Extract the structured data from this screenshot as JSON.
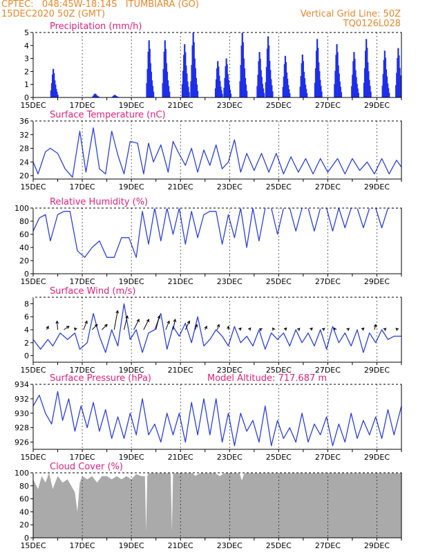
{
  "header": {
    "line1": "CPTEC:   048:45W-18:14S   ITUMBIARA (GO)",
    "line2": "15DEC2020 50Z (GMT)",
    "right1": "Vertical Grid Line: 50Z",
    "right2": "TQ0126L028"
  },
  "colors": {
    "line": "#2a3fe0",
    "precip": "#1f2fe8",
    "cloud": "#aaaaaa",
    "title": "#e0207a",
    "header": "#e8872a",
    "axis": "#000000"
  },
  "chart_data": [
    {
      "type": "bar",
      "title": "Precipitation (mm/h)",
      "ylim": [
        0,
        5
      ],
      "yticks": [
        "0",
        "1",
        "2",
        "3",
        "4",
        "5"
      ],
      "xticks": [
        "15DEC",
        "17DEC",
        "19DEC",
        "21DEC",
        "23DEC",
        "25DEC",
        "27DEC",
        "29DEC"
      ],
      "x_unit": "day of December 2020",
      "x_range": [
        15,
        30
      ],
      "bursts": [
        {
          "day": 15.85,
          "peak": 2.2
        },
        {
          "day": 17.55,
          "peak": 0.3
        },
        {
          "day": 18.35,
          "peak": 0.2
        },
        {
          "day": 19.75,
          "peak": 4.4
        },
        {
          "day": 20.4,
          "peak": 4.4
        },
        {
          "day": 21.2,
          "peak": 4.1
        },
        {
          "day": 21.55,
          "peak": 5.0
        },
        {
          "day": 22.55,
          "peak": 2.8
        },
        {
          "day": 22.9,
          "peak": 3.0
        },
        {
          "day": 23.55,
          "peak": 5.0
        },
        {
          "day": 24.25,
          "peak": 3.5
        },
        {
          "day": 24.6,
          "peak": 4.7
        },
        {
          "day": 25.3,
          "peak": 3.2
        },
        {
          "day": 26.0,
          "peak": 3.3
        },
        {
          "day": 26.6,
          "peak": 4.5
        },
        {
          "day": 27.4,
          "peak": 4.1
        },
        {
          "day": 28.1,
          "peak": 3.5
        },
        {
          "day": 28.6,
          "peak": 4.5
        },
        {
          "day": 29.35,
          "peak": 3.6
        },
        {
          "day": 29.9,
          "peak": 3.8
        }
      ]
    },
    {
      "type": "line",
      "title": "Surface Temperature (nC)",
      "ylim": [
        19,
        36
      ],
      "yticks": [
        "20",
        "24",
        "28",
        "32",
        "36"
      ],
      "xticks": [
        "15DEC",
        "17DEC",
        "19DEC",
        "21DEC",
        "23DEC",
        "25DEC",
        "27DEC",
        "29DEC"
      ],
      "x_range": [
        15,
        30
      ],
      "x": [
        15.0,
        15.2,
        15.5,
        15.7,
        16.0,
        16.3,
        16.6,
        16.9,
        17.15,
        17.45,
        17.7,
        17.95,
        18.2,
        18.45,
        18.7,
        18.95,
        19.25,
        19.5,
        19.7,
        19.9,
        20.2,
        20.5,
        20.7,
        20.9,
        21.2,
        21.45,
        21.7,
        21.95,
        22.2,
        22.45,
        22.7,
        22.95,
        23.2,
        23.45,
        23.7,
        24.0,
        24.3,
        24.6,
        24.9,
        25.2,
        25.5,
        25.8,
        26.1,
        26.4,
        26.7,
        27.0,
        27.4,
        27.7,
        28.0,
        28.3,
        28.6,
        28.9,
        29.2,
        29.5,
        29.8,
        30.0
      ],
      "y": [
        24.0,
        20.5,
        27.0,
        28.0,
        26.5,
        22.0,
        19.5,
        33.0,
        21.0,
        34.0,
        22.0,
        20.5,
        33.0,
        26.0,
        20.5,
        30.0,
        29.5,
        20.5,
        29.5,
        24.0,
        29.0,
        21.0,
        30.0,
        27.0,
        23.0,
        28.0,
        21.0,
        27.5,
        23.0,
        29.0,
        22.0,
        24.0,
        30.5,
        21.0,
        26.5,
        21.5,
        26.5,
        21.0,
        26.5,
        20.5,
        25.5,
        21.0,
        25.0,
        20.5,
        25.0,
        21.0,
        25.0,
        20.5,
        25.0,
        21.5,
        24.0,
        20.5,
        25.0,
        20.5,
        24.5,
        22.5
      ]
    },
    {
      "type": "line",
      "title": "Relative Humidity (%)",
      "ylim": [
        0,
        100
      ],
      "yticks": [
        "0",
        "20",
        "40",
        "60",
        "80",
        "100"
      ],
      "xticks": [
        "15DEC",
        "17DEC",
        "19DEC",
        "21DEC",
        "23DEC",
        "25DEC",
        "27DEC",
        "29DEC"
      ],
      "x_range": [
        15,
        30
      ],
      "x": [
        15.0,
        15.25,
        15.5,
        15.7,
        16.0,
        16.25,
        16.5,
        16.8,
        17.1,
        17.4,
        17.7,
        18.0,
        18.3,
        18.6,
        18.9,
        19.2,
        19.45,
        19.7,
        19.95,
        20.2,
        20.45,
        20.7,
        20.95,
        21.2,
        21.45,
        21.7,
        21.95,
        22.2,
        22.45,
        22.7,
        22.95,
        23.2,
        23.45,
        23.7,
        23.95,
        24.2,
        24.45,
        24.7,
        24.95,
        25.2,
        25.45,
        25.7,
        25.95,
        26.2,
        26.45,
        26.7,
        26.95,
        27.2,
        27.45,
        27.7,
        27.95,
        28.2,
        28.45,
        28.7,
        28.95,
        29.2,
        29.45,
        29.7,
        30.0
      ],
      "y": [
        65,
        85,
        90,
        50,
        90,
        95,
        95,
        35,
        25,
        40,
        50,
        25,
        25,
        55,
        55,
        25,
        95,
        45,
        100,
        50,
        100,
        60,
        100,
        45,
        95,
        55,
        90,
        95,
        95,
        45,
        90,
        55,
        100,
        40,
        100,
        50,
        100,
        100,
        60,
        100,
        100,
        65,
        100,
        100,
        65,
        100,
        100,
        65,
        100,
        70,
        100,
        100,
        70,
        100,
        100,
        70,
        100,
        100,
        100
      ]
    },
    {
      "type": "line",
      "title": "Surface Wind (m/s)",
      "ylim": [
        -1,
        9
      ],
      "yticks": [
        "0",
        "2",
        "4",
        "6",
        "8"
      ],
      "xticks": [
        "15DEC",
        "17DEC",
        "19DEC",
        "21DEC",
        "23DEC",
        "25DEC",
        "27DEC",
        "29DEC"
      ],
      "x_range": [
        15,
        30
      ],
      "x": [
        15.0,
        15.3,
        15.6,
        15.8,
        16.1,
        16.4,
        16.7,
        16.9,
        17.2,
        17.45,
        17.7,
        17.95,
        18.2,
        18.45,
        18.7,
        18.95,
        19.2,
        19.45,
        19.7,
        19.95,
        20.2,
        20.45,
        20.7,
        20.95,
        21.2,
        21.45,
        21.7,
        21.95,
        22.2,
        22.45,
        22.7,
        22.95,
        23.2,
        23.45,
        23.7,
        23.95,
        24.2,
        24.45,
        24.7,
        24.95,
        25.2,
        25.45,
        25.7,
        25.95,
        26.2,
        26.45,
        26.7,
        26.95,
        27.2,
        27.45,
        27.7,
        27.95,
        28.2,
        28.45,
        28.7,
        28.95,
        29.2,
        29.45,
        29.7,
        30.0
      ],
      "y": [
        2.5,
        1.0,
        2.5,
        1.5,
        3.5,
        2.5,
        3.5,
        1.0,
        2.0,
        6.5,
        3.0,
        0.5,
        4.0,
        1.5,
        8.0,
        2.5,
        4.0,
        0.5,
        3.5,
        4.0,
        6.5,
        1.0,
        4.5,
        3.0,
        5.0,
        2.0,
        6.0,
        1.5,
        2.5,
        4.0,
        3.0,
        1.5,
        4.5,
        2.0,
        3.0,
        1.5,
        4.0,
        1.0,
        3.5,
        2.5,
        3.5,
        1.5,
        4.0,
        2.0,
        3.5,
        1.5,
        4.0,
        1.0,
        4.5,
        2.0,
        3.5,
        1.5,
        4.0,
        0.5,
        3.5,
        2.0,
        4.0,
        2.5,
        3.0,
        3.0
      ],
      "arrows": [
        {
          "day": 15.55,
          "u": 0.5,
          "v": 1.0
        },
        {
          "day": 16.0,
          "u": -0.2,
          "v": 2.5
        },
        {
          "day": 16.25,
          "u": 1.5,
          "v": 1.0
        },
        {
          "day": 16.75,
          "u": -0.5,
          "v": 0.5
        },
        {
          "day": 17.05,
          "u": 1.0,
          "v": 2.5
        },
        {
          "day": 17.4,
          "u": 1.5,
          "v": 1.5
        },
        {
          "day": 17.8,
          "u": 1.5,
          "v": 1.5
        },
        {
          "day": 18.3,
          "u": 1.0,
          "v": 5.5
        },
        {
          "day": 18.7,
          "u": 1.0,
          "v": 4.0
        },
        {
          "day": 19.1,
          "u": 1.5,
          "v": 3.0
        },
        {
          "day": 19.5,
          "u": 1.5,
          "v": 3.0
        },
        {
          "day": 20.0,
          "u": 1.0,
          "v": 4.0
        },
        {
          "day": 20.4,
          "u": 1.0,
          "v": 2.5
        },
        {
          "day": 20.7,
          "u": 0.6,
          "v": 3.0
        },
        {
          "day": 21.2,
          "u": 1.2,
          "v": 2.5
        },
        {
          "day": 21.6,
          "u": 0.5,
          "v": 1.5
        },
        {
          "day": 22.0,
          "u": 0.5,
          "v": 1.0
        },
        {
          "day": 22.5,
          "u": 0.5,
          "v": 1.5
        },
        {
          "day": 22.95,
          "u": 0.0,
          "v": 1.0
        },
        {
          "day": 23.4,
          "u": 0.5,
          "v": 0.5
        },
        {
          "day": 23.8,
          "u": 0.4,
          "v": 0.5
        },
        {
          "day": 24.3,
          "u": -0.5,
          "v": 0.3
        },
        {
          "day": 24.8,
          "u": -0.3,
          "v": 0.5
        },
        {
          "day": 25.25,
          "u": 0.5,
          "v": 0.5
        },
        {
          "day": 25.8,
          "u": 0.4,
          "v": 0.4
        },
        {
          "day": 26.3,
          "u": 0.5,
          "v": 0.5
        },
        {
          "day": 26.8,
          "u": 0.5,
          "v": 0.4
        },
        {
          "day": 27.3,
          "u": -0.3,
          "v": 0.5
        },
        {
          "day": 27.8,
          "u": 0.5,
          "v": 0.4
        },
        {
          "day": 28.4,
          "u": 0.5,
          "v": 0.5
        },
        {
          "day": 28.9,
          "u": 0.4,
          "v": 1.5
        },
        {
          "day": 29.3,
          "u": 0.5,
          "v": 0.4
        },
        {
          "day": 29.85,
          "u": -0.5,
          "v": 0.4
        }
      ]
    },
    {
      "type": "line",
      "title": "Surface Pressure (hPa)",
      "annotation": "Model Altitude: 717.687 m",
      "ylim": [
        925,
        934
      ],
      "yticks": [
        "926",
        "928",
        "930",
        "932",
        "934"
      ],
      "xticks": [
        "15DEC",
        "17DEC",
        "19DEC",
        "21DEC",
        "23DEC",
        "25DEC",
        "27DEC",
        "29DEC"
      ],
      "x_range": [
        15,
        30
      ],
      "x": [
        15.0,
        15.25,
        15.5,
        15.75,
        16.0,
        16.2,
        16.45,
        16.7,
        16.95,
        17.2,
        17.45,
        17.7,
        17.95,
        18.2,
        18.45,
        18.7,
        18.95,
        19.2,
        19.45,
        19.7,
        19.95,
        20.2,
        20.45,
        20.7,
        20.95,
        21.2,
        21.45,
        21.7,
        21.95,
        22.2,
        22.45,
        22.7,
        22.95,
        23.2,
        23.45,
        23.7,
        23.95,
        24.2,
        24.45,
        24.7,
        24.95,
        25.2,
        25.45,
        25.7,
        25.95,
        26.2,
        26.45,
        26.7,
        26.95,
        27.2,
        27.45,
        27.7,
        27.95,
        28.2,
        28.45,
        28.7,
        28.95,
        29.2,
        29.45,
        29.7,
        30.0
      ],
      "y": [
        931.0,
        932.5,
        930.0,
        928.5,
        933.0,
        929.0,
        932.0,
        927.5,
        931.0,
        928.0,
        931.5,
        927.5,
        930.5,
        926.5,
        929.5,
        926.5,
        930.0,
        927.0,
        932.0,
        927.0,
        928.5,
        926.0,
        930.0,
        927.0,
        930.0,
        926.0,
        931.5,
        927.0,
        932.0,
        927.0,
        932.0,
        926.0,
        930.0,
        925.5,
        930.0,
        927.5,
        929.0,
        926.0,
        931.0,
        925.5,
        929.0,
        926.5,
        928.0,
        926.0,
        930.0,
        926.0,
        928.5,
        927.0,
        929.5,
        925.5,
        928.5,
        926.0,
        930.0,
        926.5,
        929.0,
        927.0,
        929.5,
        926.5,
        930.5,
        927.0,
        931.0
      ]
    },
    {
      "type": "area",
      "title": "Cloud Cover (%)",
      "ylim": [
        0,
        100
      ],
      "yticks": [
        "0",
        "20",
        "40",
        "60",
        "80",
        "100"
      ],
      "xticks": [
        "15DEC",
        "17DEC",
        "19DEC",
        "21DEC",
        "23DEC",
        "25DEC",
        "27DEC",
        "29DEC"
      ],
      "x_range": [
        15,
        30
      ],
      "x": [
        15.0,
        15.2,
        15.35,
        15.5,
        15.65,
        15.8,
        16.0,
        16.2,
        16.4,
        16.55,
        16.7,
        16.8,
        16.9,
        17.0,
        17.2,
        17.4,
        17.6,
        17.8,
        18.0,
        18.2,
        18.4,
        18.6,
        18.8,
        19.0,
        19.2,
        19.4,
        19.55,
        19.6,
        19.65,
        19.7,
        19.9,
        20.1,
        20.3,
        20.5,
        20.6,
        20.65,
        20.7,
        20.9,
        21.1,
        21.3,
        21.5,
        21.6,
        21.8,
        22.0,
        22.2,
        22.4,
        22.6,
        22.8,
        23.0,
        23.2,
        23.4,
        23.5,
        23.6,
        30.0
      ],
      "y": [
        90,
        75,
        95,
        85,
        100,
        75,
        95,
        85,
        90,
        80,
        70,
        40,
        85,
        95,
        90,
        95,
        85,
        95,
        95,
        90,
        95,
        90,
        95,
        90,
        98,
        95,
        95,
        10,
        95,
        100,
        100,
        100,
        100,
        100,
        100,
        10,
        100,
        100,
        100,
        100,
        100,
        95,
        100,
        100,
        100,
        100,
        95,
        100,
        100,
        100,
        100,
        88,
        100,
        100
      ]
    }
  ]
}
